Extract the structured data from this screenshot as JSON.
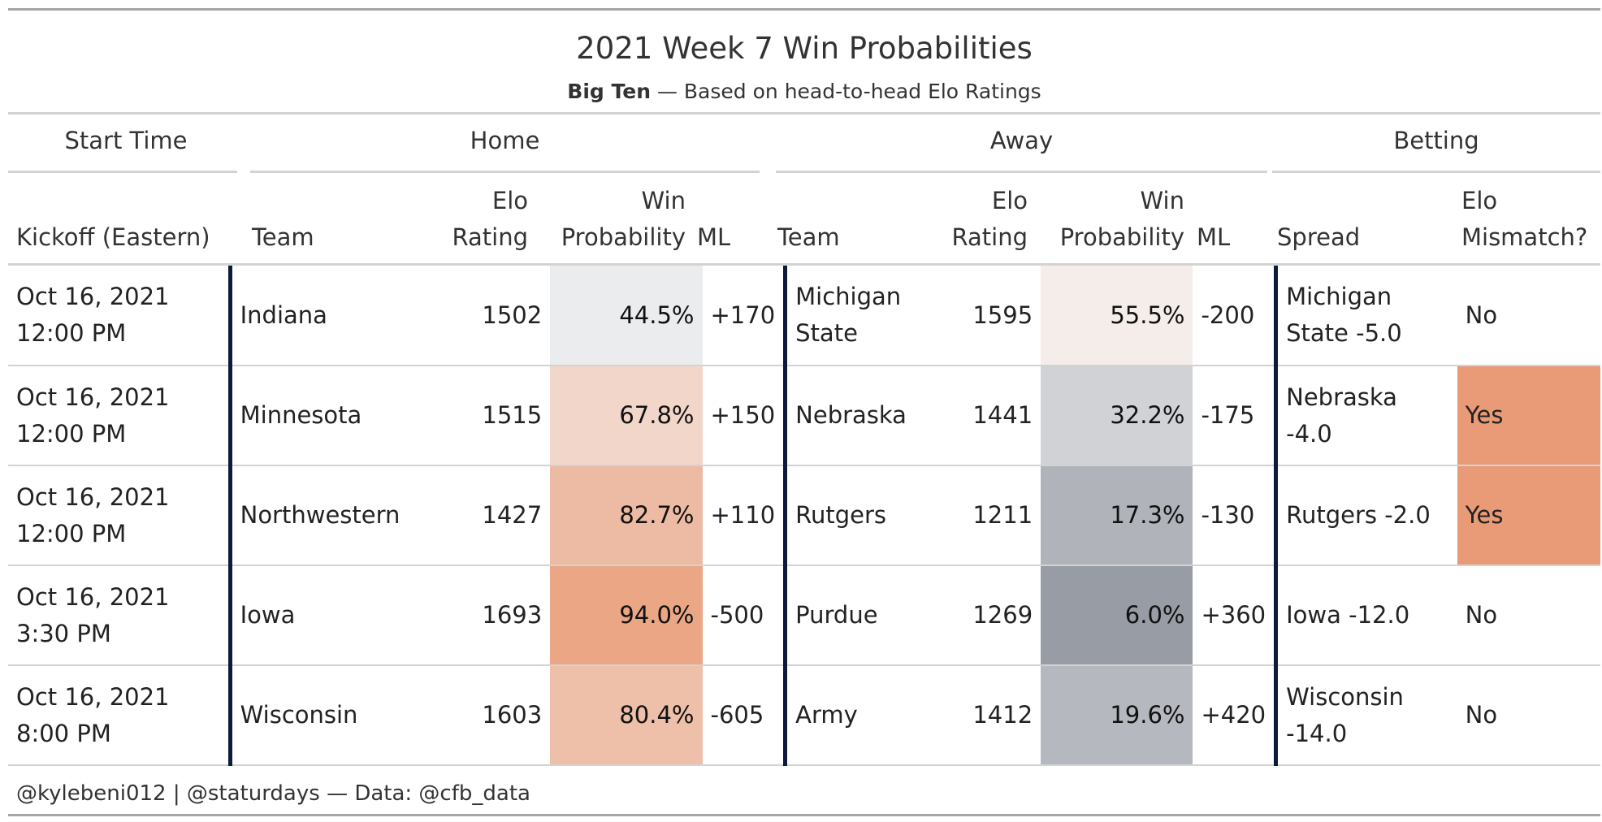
{
  "chart_data": {
    "type": "table",
    "title": "2021 Week 7 Win Probabilities",
    "subtitle_bold": "Big Ten",
    "subtitle_rest": " — Based on head-to-head Elo Ratings",
    "spanners": {
      "start_time": "Start Time",
      "home": "Home",
      "away": "Away",
      "betting": "Betting"
    },
    "columns": {
      "kickoff": "Kickoff (Eastern)",
      "home_team": "Team",
      "home_elo_line1": "Elo",
      "home_elo_line2": "Rating",
      "home_win_line1": "Win",
      "home_win_line2": "Probability",
      "home_ml": "ML",
      "away_team": "Team",
      "away_elo_line1": "Elo",
      "away_elo_line2": "Rating",
      "away_win_line1": "Win",
      "away_win_line2": "Probability",
      "away_ml": "ML",
      "spread": "Spread",
      "mismatch_line1": "Elo",
      "mismatch_line2": "Mismatch?"
    },
    "rows": [
      {
        "kickoff": "Oct 16, 2021 12:00 PM",
        "home_team": "Indiana",
        "home_elo": "1502",
        "home_win": "44.5%",
        "home_win_value": 44.5,
        "home_ml": "+170",
        "away_team": "Michigan State",
        "away_elo": "1595",
        "away_win": "55.5%",
        "away_win_value": 55.5,
        "away_ml": "-200",
        "spread": "Michigan State -5.0",
        "mismatch": "No"
      },
      {
        "kickoff": "Oct 16, 2021 12:00 PM",
        "home_team": "Minnesota",
        "home_elo": "1515",
        "home_win": "67.8%",
        "home_win_value": 67.8,
        "home_ml": "+150",
        "away_team": "Nebraska",
        "away_elo": "1441",
        "away_win": "32.2%",
        "away_win_value": 32.2,
        "away_ml": "-175",
        "spread": "Nebraska -4.0",
        "mismatch": "Yes"
      },
      {
        "kickoff": "Oct 16, 2021 12:00 PM",
        "home_team": "Northwestern",
        "home_elo": "1427",
        "home_win": "82.7%",
        "home_win_value": 82.7,
        "home_ml": "+110",
        "away_team": "Rutgers",
        "away_elo": "1211",
        "away_win": "17.3%",
        "away_win_value": 17.3,
        "away_ml": "-130",
        "spread": "Rutgers -2.0",
        "mismatch": "Yes"
      },
      {
        "kickoff": "Oct 16, 2021 3:30 PM",
        "home_team": "Iowa",
        "home_elo": "1693",
        "home_win": "94.0%",
        "home_win_value": 94.0,
        "home_ml": "-500",
        "away_team": "Purdue",
        "away_elo": "1269",
        "away_win": "6.0%",
        "away_win_value": 6.0,
        "away_ml": "+360",
        "spread": "Iowa -12.0",
        "mismatch": "No"
      },
      {
        "kickoff": "Oct 16, 2021 8:00 PM",
        "home_team": "Wisconsin",
        "home_elo": "1603",
        "home_win": "80.4%",
        "home_win_value": 80.4,
        "home_ml": "-605",
        "away_team": "Army",
        "away_elo": "1412",
        "away_win": "19.6%",
        "away_win_value": 19.6,
        "away_ml": "+420",
        "spread": "Wisconsin -14.0",
        "mismatch": "No"
      }
    ],
    "footer": "@kylebeni012 | @staturdays — Data: @cfb_data",
    "colors": {
      "low": "#8b9099",
      "mid": "#f7f7f7",
      "high": "#e89b76",
      "mismatch_yes": "#e89b76",
      "divider": "#0e1a3a"
    }
  }
}
